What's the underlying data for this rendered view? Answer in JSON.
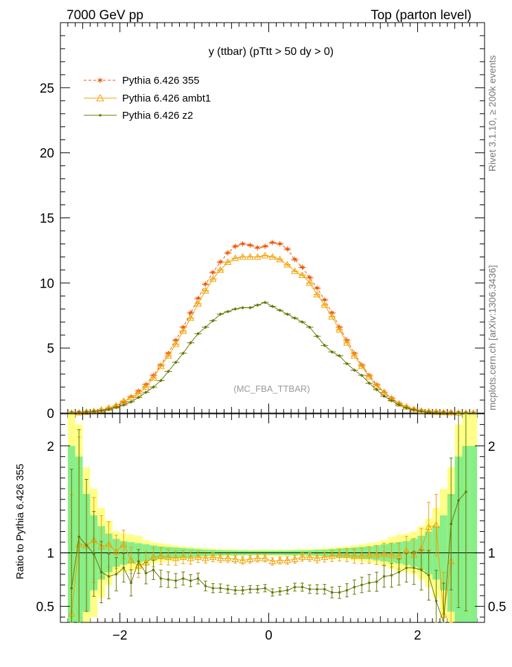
{
  "header": {
    "left": "7000 GeV pp",
    "right": "Top (parton level)"
  },
  "side": {
    "rivet": "Rivet 3.1.10, ≥ 200k events",
    "mcplots": "mcplots.cern.ch [arXiv:1306.3436]"
  },
  "chart_data": {
    "type": "line",
    "title": "y (ttbar) (pTtt > 50 dy > 0)",
    "watermark": "(MC_FBA_TTBAR)",
    "xlabel": "",
    "ylabel_ratio": "Ratio to Pythia 6.426 355",
    "xlim": [
      -2.8,
      2.9
    ],
    "ylim_main": [
      0,
      30
    ],
    "ylim_ratio": [
      0.35,
      2.3
    ],
    "x_ticks": [
      -2,
      0,
      2
    ],
    "x_tick_labels": [
      "−2",
      "0",
      "2"
    ],
    "y_ticks_main": [
      0,
      5,
      10,
      15,
      20,
      25
    ],
    "y_tick_labels_main": [
      "0",
      "5",
      "10",
      "15",
      "20",
      "25"
    ],
    "y_ticks_ratio": [
      0.5,
      1,
      2
    ],
    "y_tick_labels_ratio": [
      "0.5",
      "1",
      "2"
    ],
    "legend": [
      "Pythia 6.426 355",
      "Pythia 6.426 ambt1",
      "Pythia 6.426 z2"
    ],
    "colors": {
      "p355": "#ee5500",
      "ambt1": "#f0a000",
      "z2": "#667700",
      "band_outer": "#ffff88",
      "band_inner": "#88ee88"
    },
    "bin_width": 0.1,
    "x": [
      -2.65,
      -2.55,
      -2.45,
      -2.35,
      -2.25,
      -2.15,
      -2.05,
      -1.95,
      -1.85,
      -1.75,
      -1.65,
      -1.55,
      -1.45,
      -1.35,
      -1.25,
      -1.15,
      -1.05,
      -0.95,
      -0.85,
      -0.75,
      -0.65,
      -0.55,
      -0.45,
      -0.35,
      -0.25,
      -0.15,
      -0.05,
      0.05,
      0.15,
      0.25,
      0.35,
      0.45,
      0.55,
      0.65,
      0.75,
      0.85,
      0.95,
      1.05,
      1.15,
      1.25,
      1.35,
      1.45,
      1.55,
      1.65,
      1.75,
      1.85,
      1.95,
      2.05,
      2.15,
      2.25,
      2.35,
      2.45,
      2.55,
      2.65,
      2.75
    ],
    "series": [
      {
        "name": "Pythia 6.426 355",
        "key": "p355",
        "values": [
          0.03,
          0.05,
          0.09,
          0.13,
          0.22,
          0.36,
          0.55,
          0.85,
          1.25,
          1.7,
          2.2,
          2.9,
          3.7,
          4.6,
          5.6,
          6.6,
          7.7,
          8.8,
          9.9,
          10.8,
          11.6,
          12.3,
          12.8,
          13.0,
          12.9,
          12.7,
          12.8,
          13.1,
          13.0,
          12.6,
          11.8,
          11.2,
          10.4,
          9.6,
          8.7,
          7.7,
          6.6,
          5.6,
          4.6,
          3.7,
          2.9,
          2.2,
          1.6,
          1.15,
          0.75,
          0.47,
          0.3,
          0.18,
          0.1,
          0.07,
          0.05,
          0.04,
          0.02,
          0.01,
          0.01
        ],
        "errors": [
          0.01,
          0.01,
          0.01,
          0.02,
          0.02,
          0.03,
          0.04,
          0.05,
          0.06,
          0.07,
          0.08,
          0.09,
          0.1,
          0.11,
          0.12,
          0.13,
          0.14,
          0.15,
          0.16,
          0.16,
          0.17,
          0.17,
          0.18,
          0.18,
          0.18,
          0.18,
          0.18,
          0.18,
          0.18,
          0.18,
          0.17,
          0.17,
          0.16,
          0.16,
          0.15,
          0.14,
          0.13,
          0.12,
          0.11,
          0.1,
          0.09,
          0.08,
          0.07,
          0.06,
          0.05,
          0.04,
          0.03,
          0.03,
          0.02,
          0.02,
          0.01,
          0.01,
          0.01,
          0.01,
          0.01
        ]
      },
      {
        "name": "Pythia 6.426 ambt1",
        "key": "ambt1",
        "values": [
          0.02,
          0.03,
          0.09,
          0.14,
          0.24,
          0.39,
          0.56,
          0.92,
          1.2,
          1.5,
          2.0,
          2.7,
          3.6,
          4.4,
          5.3,
          6.3,
          7.3,
          8.4,
          9.4,
          10.3,
          11.0,
          11.6,
          11.9,
          12.0,
          12.0,
          12.0,
          12.1,
          12.0,
          11.8,
          11.4,
          10.9,
          10.6,
          10.0,
          9.1,
          8.3,
          7.4,
          6.4,
          5.4,
          4.4,
          3.6,
          2.8,
          2.1,
          1.6,
          1.1,
          0.72,
          0.48,
          0.29,
          0.17,
          0.12,
          0.09,
          0.05,
          0.03,
          0.02,
          0.01,
          0.01
        ],
        "ratio": [
          0.43,
          1.08,
          1.07,
          1.12,
          1.06,
          1.08,
          1.01,
          1.08,
          0.93,
          0.88,
          0.91,
          0.96,
          0.97,
          0.96,
          0.95,
          0.96,
          0.95,
          0.96,
          0.95,
          0.96,
          0.95,
          0.95,
          0.94,
          0.93,
          0.94,
          0.95,
          0.95,
          0.92,
          0.93,
          0.93,
          0.94,
          0.96,
          0.96,
          0.95,
          0.96,
          0.97,
          0.98,
          0.98,
          0.97,
          0.97,
          0.98,
          0.98,
          0.99,
          0.98,
          0.97,
          1.02,
          0.98,
          1.04,
          1.24,
          1.26,
          0.42,
          0.92,
          null,
          null,
          null
        ]
      },
      {
        "name": "Pythia 6.426 z2",
        "key": "z2",
        "values": [
          0.02,
          0.06,
          0.09,
          0.13,
          0.18,
          0.28,
          0.43,
          0.62,
          0.86,
          1.2,
          1.6,
          2.0,
          2.5,
          3.2,
          3.9,
          4.6,
          5.4,
          6.1,
          6.6,
          7.1,
          7.6,
          7.8,
          8.0,
          8.1,
          8.1,
          8.3,
          8.5,
          8.2,
          7.9,
          7.6,
          7.3,
          7.0,
          6.6,
          5.9,
          5.2,
          4.7,
          4.4,
          3.8,
          3.3,
          2.9,
          2.3,
          1.8,
          1.3,
          0.96,
          0.63,
          0.4,
          0.24,
          0.13,
          0.07,
          0.03,
          0.03,
          0.02,
          0.01,
          0.01,
          0.0
        ],
        "ratio": [
          0.67,
          1.15,
          1.07,
          0.99,
          0.82,
          0.78,
          0.8,
          0.86,
          0.72,
          0.92,
          0.81,
          0.84,
          0.76,
          0.75,
          0.74,
          0.76,
          0.74,
          0.76,
          0.69,
          0.67,
          0.67,
          0.66,
          0.65,
          0.65,
          0.66,
          0.66,
          0.67,
          0.63,
          0.64,
          0.65,
          0.68,
          0.68,
          0.66,
          0.66,
          0.66,
          0.63,
          0.63,
          0.65,
          0.68,
          0.7,
          0.72,
          0.73,
          0.78,
          0.79,
          0.82,
          0.86,
          0.86,
          0.84,
          0.79,
          0.55,
          0.32,
          1.27,
          1.49,
          1.57,
          null
        ]
      }
    ],
    "band_outer": [
      1.3,
      1.2,
      0.8,
      0.6,
      0.42,
      0.3,
      0.2,
      0.18,
      0.17,
      0.16,
      0.12,
      0.1,
      0.09,
      0.08,
      0.07,
      0.06,
      0.055,
      0.05,
      0.045,
      0.04,
      0.035,
      0.035,
      0.032,
      0.03,
      0.03,
      0.03,
      0.03,
      0.03,
      0.03,
      0.03,
      0.032,
      0.035,
      0.035,
      0.04,
      0.045,
      0.05,
      0.055,
      0.06,
      0.07,
      0.08,
      0.09,
      0.1,
      0.12,
      0.15,
      0.17,
      0.18,
      0.2,
      0.25,
      0.32,
      0.42,
      0.6,
      0.8,
      1.2,
      1.3,
      1.3
    ],
    "band_inner": [
      1.0,
      0.9,
      0.55,
      0.35,
      0.25,
      0.18,
      0.13,
      0.11,
      0.1,
      0.09,
      0.08,
      0.07,
      0.06,
      0.055,
      0.05,
      0.045,
      0.04,
      0.035,
      0.03,
      0.028,
      0.025,
      0.023,
      0.022,
      0.021,
      0.02,
      0.02,
      0.02,
      0.02,
      0.02,
      0.021,
      0.022,
      0.023,
      0.025,
      0.028,
      0.03,
      0.035,
      0.04,
      0.045,
      0.05,
      0.055,
      0.06,
      0.07,
      0.08,
      0.09,
      0.1,
      0.11,
      0.13,
      0.16,
      0.2,
      0.25,
      0.35,
      0.55,
      0.9,
      1.0,
      1.0
    ]
  }
}
